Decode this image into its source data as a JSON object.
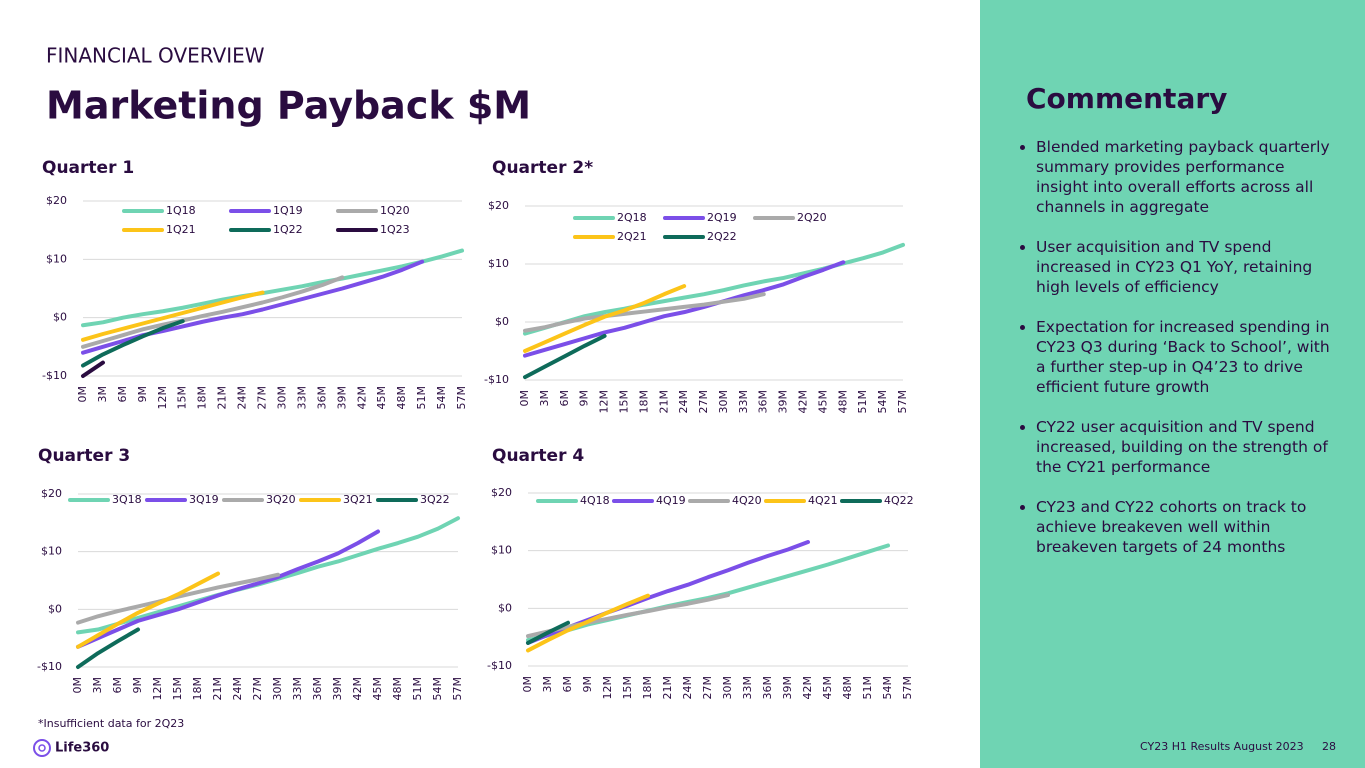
{
  "header": {
    "kicker": "FINANCIAL OVERVIEW",
    "title": "Marketing Payback $M"
  },
  "chart_data": [
    {
      "type": "line",
      "title": "Quarter 1",
      "categories": [
        "0M",
        "3M",
        "6M",
        "9M",
        "12M",
        "15M",
        "18M",
        "21M",
        "24M",
        "27M",
        "30M",
        "33M",
        "36M",
        "39M",
        "42M",
        "45M",
        "48M",
        "51M",
        "54M",
        "57M"
      ],
      "ylim": [
        -10,
        20
      ],
      "yticks": [
        {
          "value": -10,
          "label": "-$10"
        },
        {
          "value": 0,
          "label": "$0"
        },
        {
          "value": 10,
          "label": "$10"
        },
        {
          "value": 20,
          "label": "$20"
        }
      ],
      "grid": true,
      "series": [
        {
          "name": "1Q18",
          "color": "#6fd4b3",
          "values": [
            -1.3,
            -0.8,
            0,
            0.6,
            1.1,
            1.7,
            2.4,
            3.1,
            3.7,
            4.2,
            4.8,
            5.4,
            6.1,
            6.7,
            7.4,
            8.1,
            8.8,
            9.6,
            10.5,
            11.5
          ]
        },
        {
          "name": "1Q19",
          "color": "#7b4fe8",
          "values": [
            -6,
            -5,
            -4,
            -3,
            -2.3,
            -1.5,
            -0.7,
            0,
            0.6,
            1.4,
            2.3,
            3.2,
            4.1,
            5,
            6,
            7,
            8.2,
            9.6,
            null,
            null
          ]
        },
        {
          "name": "1Q20",
          "color": "#aaaaaa",
          "values": [
            -5,
            -4,
            -3,
            -2,
            -1.2,
            -0.5,
            0.3,
            1,
            1.8,
            2.6,
            3.5,
            4.5,
            5.6,
            6.9,
            null,
            null,
            null,
            null,
            null,
            null
          ]
        },
        {
          "name": "1Q21",
          "color": "#fcc419",
          "values": [
            -3.8,
            -2.8,
            -1.9,
            -1,
            -0.1,
            0.8,
            1.7,
            2.6,
            3.5,
            4.3,
            null,
            null,
            null,
            null,
            null,
            null,
            null,
            null,
            null,
            null
          ]
        },
        {
          "name": "1Q22",
          "color": "#0e6b5a",
          "values": [
            -8.2,
            -6.3,
            -4.7,
            -3.2,
            -1.8,
            -0.6,
            null,
            null,
            null,
            null,
            null,
            null,
            null,
            null,
            null,
            null,
            null,
            null,
            null,
            null
          ]
        },
        {
          "name": "1Q23",
          "color": "#2a0c40",
          "values": [
            -10,
            -7.7,
            null,
            null,
            null,
            null,
            null,
            null,
            null,
            null,
            null,
            null,
            null,
            null,
            null,
            null,
            null,
            null,
            null,
            null
          ]
        }
      ]
    },
    {
      "type": "line",
      "title": "Quarter 2*",
      "categories": [
        "0M",
        "3M",
        "6M",
        "9M",
        "12M",
        "15M",
        "18M",
        "21M",
        "24M",
        "27M",
        "30M",
        "33M",
        "36M",
        "39M",
        "42M",
        "45M",
        "48M",
        "51M",
        "54M",
        "57M"
      ],
      "ylim": [
        -10,
        20
      ],
      "yticks": [
        {
          "value": -10,
          "label": "-$10"
        },
        {
          "value": 0,
          "label": "$0"
        },
        {
          "value": 10,
          "label": "$10"
        },
        {
          "value": 20,
          "label": "$20"
        }
      ],
      "grid": true,
      "series": [
        {
          "name": "2Q18",
          "color": "#6fd4b3",
          "values": [
            -2,
            -1,
            0,
            1,
            1.7,
            2.3,
            3,
            3.6,
            4.2,
            4.8,
            5.5,
            6.3,
            7,
            7.6,
            8.4,
            9.2,
            10.1,
            11,
            12,
            13.3
          ]
        },
        {
          "name": "2Q19",
          "color": "#7b4fe8",
          "values": [
            -5.8,
            -4.8,
            -3.8,
            -2.8,
            -1.8,
            -1,
            0,
            1,
            1.7,
            2.6,
            3.6,
            4.6,
            5.5,
            6.5,
            7.8,
            9,
            10.3,
            null,
            null,
            null
          ]
        },
        {
          "name": "2Q20",
          "color": "#aaaaaa",
          "values": [
            -1.5,
            -0.9,
            -0.1,
            0.6,
            1,
            1.4,
            1.8,
            2.2,
            2.6,
            3,
            3.5,
            4,
            4.8,
            null,
            null,
            null,
            null,
            null,
            null,
            null
          ]
        },
        {
          "name": "2Q21",
          "color": "#fcc419",
          "values": [
            -5,
            -3.5,
            -2,
            -0.5,
            0.9,
            2,
            3.3,
            4.8,
            6.2,
            null,
            null,
            null,
            null,
            null,
            null,
            null,
            null,
            null,
            null,
            null
          ]
        },
        {
          "name": "2Q22",
          "color": "#0e6b5a",
          "values": [
            -9.5,
            -7.7,
            -5.9,
            -4.1,
            -2.4,
            null,
            null,
            null,
            null,
            null,
            null,
            null,
            null,
            null,
            null,
            null,
            null,
            null,
            null,
            null
          ]
        }
      ]
    },
    {
      "type": "line",
      "title": "Quarter 3",
      "categories": [
        "0M",
        "3M",
        "6M",
        "9M",
        "12M",
        "15M",
        "18M",
        "21M",
        "24M",
        "27M",
        "30M",
        "33M",
        "36M",
        "39M",
        "42M",
        "45M",
        "48M",
        "51M",
        "54M",
        "57M"
      ],
      "ylim": [
        -10,
        20
      ],
      "yticks": [
        {
          "value": -10,
          "label": "-$10"
        },
        {
          "value": 0,
          "label": "$0"
        },
        {
          "value": 10,
          "label": "$10"
        },
        {
          "value": 20,
          "label": "$20"
        }
      ],
      "grid": true,
      "series": [
        {
          "name": "3Q18",
          "color": "#6fd4b3",
          "values": [
            -4,
            -3.5,
            -2.5,
            -1.5,
            -0.5,
            0.5,
            1.5,
            2.5,
            3.4,
            4.3,
            5.3,
            6.3,
            7.4,
            8.3,
            9.4,
            10.5,
            11.5,
            12.6,
            14,
            15.8
          ]
        },
        {
          "name": "3Q19",
          "color": "#7b4fe8",
          "values": [
            -6.5,
            -5,
            -3.5,
            -2,
            -1,
            0,
            1.2,
            2.4,
            3.5,
            4.5,
            5.6,
            7,
            8.3,
            9.7,
            11.5,
            13.5,
            null,
            null,
            null,
            null
          ]
        },
        {
          "name": "3Q20",
          "color": "#aaaaaa",
          "values": [
            -2.3,
            -1.2,
            -0.3,
            0.5,
            1.3,
            2.2,
            3,
            3.8,
            4.5,
            5.2,
            6,
            null,
            null,
            null,
            null,
            null,
            null,
            null,
            null,
            null
          ]
        },
        {
          "name": "3Q21",
          "color": "#fcc419",
          "values": [
            -6.5,
            -4.5,
            -2.5,
            -0.6,
            1,
            2.6,
            4.4,
            6.2,
            null,
            null,
            null,
            null,
            null,
            null,
            null,
            null,
            null,
            null,
            null,
            null
          ]
        },
        {
          "name": "3Q22",
          "color": "#0e6b5a",
          "values": [
            -10,
            -7.6,
            -5.5,
            -3.5,
            null,
            null,
            null,
            null,
            null,
            null,
            null,
            null,
            null,
            null,
            null,
            null,
            null,
            null,
            null,
            null
          ]
        }
      ]
    },
    {
      "type": "line",
      "title": "Quarter 4",
      "categories": [
        "0M",
        "3M",
        "6M",
        "9M",
        "12M",
        "15M",
        "18M",
        "21M",
        "24M",
        "27M",
        "30M",
        "33M",
        "36M",
        "39M",
        "42M",
        "45M",
        "48M",
        "51M",
        "54M",
        "57M"
      ],
      "ylim": [
        -10,
        20
      ],
      "yticks": [
        {
          "value": -10,
          "label": "-$10"
        },
        {
          "value": 0,
          "label": "$0"
        },
        {
          "value": 10,
          "label": "$10"
        },
        {
          "value": 20,
          "label": "$20"
        }
      ],
      "grid": true,
      "series": [
        {
          "name": "4Q18",
          "color": "#6fd4b3",
          "values": [
            -5.5,
            -4.7,
            -3.8,
            -2.8,
            -2,
            -1.2,
            -0.4,
            0.4,
            1.1,
            1.8,
            2.6,
            3.6,
            4.6,
            5.6,
            6.6,
            7.6,
            8.7,
            9.8,
            10.9,
            null
          ]
        },
        {
          "name": "4Q19",
          "color": "#7b4fe8",
          "values": [
            -6,
            -4.6,
            -3.3,
            -2,
            -0.7,
            0.5,
            1.8,
            3,
            4.1,
            5.4,
            6.6,
            7.9,
            9.1,
            10.2,
            11.5,
            null,
            null,
            null,
            null,
            null
          ]
        },
        {
          "name": "4Q20",
          "color": "#aaaaaa",
          "values": [
            -4.8,
            -4,
            -3.2,
            -2.5,
            -1.8,
            -1.1,
            -0.5,
            0.2,
            0.8,
            1.5,
            2.3,
            null,
            null,
            null,
            null,
            null,
            null,
            null,
            null,
            null
          ]
        },
        {
          "name": "4Q21",
          "color": "#fcc419",
          "values": [
            -7.3,
            -5.5,
            -3.8,
            -2.3,
            -0.7,
            0.8,
            2.2,
            null,
            null,
            null,
            null,
            null,
            null,
            null,
            null,
            null,
            null,
            null,
            null,
            null
          ]
        },
        {
          "name": "4Q22",
          "color": "#0e6b5a",
          "values": [
            -6,
            -4.2,
            -2.5,
            null,
            null,
            null,
            null,
            null,
            null,
            null,
            null,
            null,
            null,
            null,
            null,
            null,
            null,
            null,
            null,
            null
          ]
        }
      ]
    }
  ],
  "commentary": {
    "title": "Commentary",
    "bullets": [
      "Blended marketing payback quarterly summary provides performance insight into overall efforts across all channels in aggregate",
      "User acquisition and TV spend increased in CY23 Q1 YoY, retaining high levels of efficiency",
      "Expectation for increased spending in CY23 Q3 during ‘Back to School’, with a further step-up in Q4’23 to drive efficient future growth",
      "CY22 user acquisition and TV spend increased, building on the strength of the CY21 performance",
      "CY23 and CY22 cohorts on track to achieve breakeven well within breakeven targets of 24 months"
    ]
  },
  "footer": {
    "note": "*Insufficient data for 2Q23",
    "logo": "Life360",
    "date": "CY23 H1 Results August 2023",
    "page": "28"
  }
}
